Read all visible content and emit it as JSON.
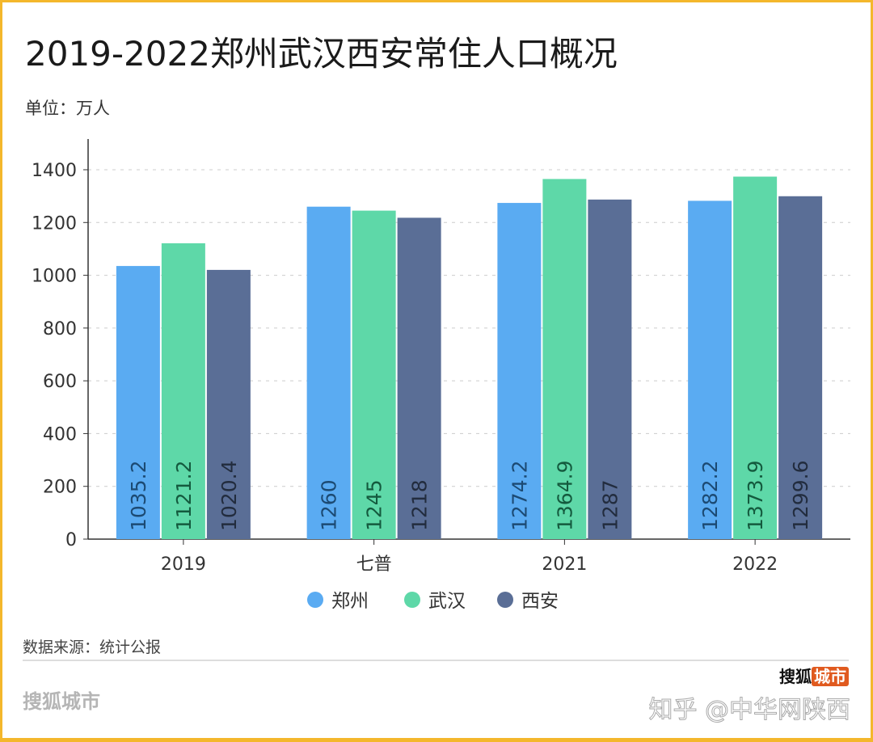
{
  "title": "2019-2022郑州武汉西安常住人口概况",
  "unit": "单位：万人",
  "source": "数据来源：统计公报",
  "brand": "搜狐城市",
  "watermark": "知乎 @中华网陕西",
  "logo": {
    "text": "搜狐",
    "badge": "城市"
  },
  "chart_data": {
    "type": "bar",
    "categories": [
      "2019",
      "七普",
      "2021",
      "2022"
    ],
    "series": [
      {
        "name": "郑州",
        "values": [
          1035.2,
          1260,
          1274.2,
          1282.2
        ],
        "labels": [
          "1035.2",
          "1260",
          "1274.2",
          "1282.2"
        ],
        "color": "#5aabf2",
        "label_color": "#1c4a73"
      },
      {
        "name": "武汉",
        "values": [
          1121.2,
          1245,
          1364.9,
          1373.9
        ],
        "labels": [
          "1121.2",
          "1245",
          "1364.9",
          "1373.9"
        ],
        "color": "#5ed8a8",
        "label_color": "#145a3e"
      },
      {
        "name": "西安",
        "values": [
          1020.4,
          1218,
          1287,
          1299.6
        ],
        "labels": [
          "1020.4",
          "1218",
          "1287",
          "1299.6"
        ],
        "color": "#5a6e96",
        "label_color": "#222c3e"
      }
    ],
    "yticks": [
      "0",
      "200",
      "400",
      "600",
      "800",
      "1000",
      "1200",
      "1400"
    ],
    "ylim": [
      0,
      1500
    ],
    "grid": true,
    "legend": "bottom"
  }
}
